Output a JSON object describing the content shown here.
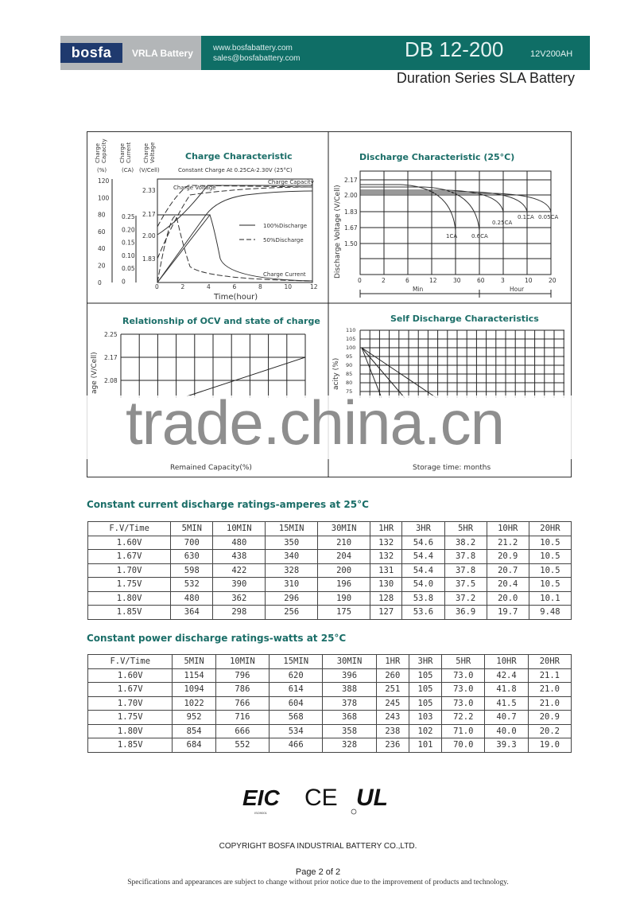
{
  "header": {
    "brand": "bosfa",
    "product_line": "VRLA Battery",
    "website": "www.bosfabattery.com",
    "email": "sales@bosfabattery.com",
    "model": "DB 12-200",
    "rating": "12V200AH",
    "subtitle": "Duration Series SLA Battery",
    "colors": {
      "teal": "#0f6e66",
      "gray": "#b3b6b8",
      "navy": "#1f3a6e"
    }
  },
  "charts": {
    "charge": {
      "title": "Charge Characteristic",
      "subtitle": "Constant Charge At 0.25CA-2.30V  (25°C)",
      "axis_heads": [
        "Charge Capacity",
        "Charge Current",
        "Charge Voltage"
      ],
      "units": [
        "(%)",
        "(CA)",
        "(V/Cell)"
      ],
      "capacity_ticks": [
        "120",
        "100",
        "80",
        "60",
        "40",
        "20",
        "0"
      ],
      "current_ticks": [
        "0.25",
        "0.20",
        "0.15",
        "0.10",
        "0.05",
        "0"
      ],
      "voltage_ticks": [
        "2.33",
        "2.17",
        "2.00",
        "1.83"
      ],
      "x_ticks": [
        "0",
        "2",
        "4",
        "6",
        "8",
        "10",
        "12"
      ],
      "xlabel": "Time(hour)",
      "labels": [
        "Charge Voltage",
        "Charge Capacity",
        "Charge Current"
      ],
      "legend": [
        "100%Discharge",
        "50%Discharge"
      ]
    },
    "discharge": {
      "title": "Discharge Characteristic  (25°C)",
      "ylabel": "Discharge Voltage (V/Cell)",
      "y_ticks": [
        "2.17",
        "2.00",
        "1.83",
        "1.67",
        "1.50"
      ],
      "x_ticks": [
        "0",
        "2",
        "6",
        "12",
        "30",
        "60",
        "3",
        "10",
        "20"
      ],
      "x_units": [
        "Min",
        "Hour"
      ],
      "series": [
        "1CA",
        "0.6CA",
        "0.25CA",
        "0.1CA",
        "0.05CA"
      ]
    },
    "ocv": {
      "title": "Relationship of OCV and state of charge",
      "ylabel": "age (V/Cell)",
      "y_ticks": [
        "2.25",
        "2.17",
        "2.08"
      ],
      "xlabel": "Remained Capacity(%)"
    },
    "self_discharge": {
      "title": "Self Discharge Characteristics",
      "ylabel": "acity (%)",
      "y_ticks": [
        "110",
        "105",
        "100",
        "95",
        "90",
        "85",
        "80",
        "75"
      ],
      "xlabel": "Storage time: months"
    }
  },
  "watermark": "trade.china.cn",
  "current_table": {
    "title": "Constant current discharge ratings-amperes at 25°C",
    "headers": [
      "F.V/Time",
      "5MIN",
      "10MIN",
      "15MIN",
      "30MIN",
      "1HR",
      "3HR",
      "5HR",
      "10HR",
      "20HR"
    ],
    "rows": [
      [
        "1.60V",
        "700",
        "480",
        "350",
        "210",
        "132",
        "54.6",
        "38.2",
        "21.2",
        "10.5"
      ],
      [
        "1.67V",
        "630",
        "438",
        "340",
        "204",
        "132",
        "54.4",
        "37.8",
        "20.9",
        "10.5"
      ],
      [
        "1.70V",
        "598",
        "422",
        "328",
        "200",
        "131",
        "54.4",
        "37.8",
        "20.7",
        "10.5"
      ],
      [
        "1.75V",
        "532",
        "390",
        "310",
        "196",
        "130",
        "54.0",
        "37.5",
        "20.4",
        "10.5"
      ],
      [
        "1.80V",
        "480",
        "362",
        "296",
        "190",
        "128",
        "53.8",
        "37.2",
        "20.0",
        "10.1"
      ],
      [
        "1.85V",
        "364",
        "298",
        "256",
        "175",
        "127",
        "53.6",
        "36.9",
        "19.7",
        "9.48"
      ]
    ]
  },
  "power_table": {
    "title": "Constant power discharge ratings-watts at 25°C",
    "headers": [
      "F.V/Time",
      "5MIN",
      "10MIN",
      "15MIN",
      "30MIN",
      "1HR",
      "3HR",
      "5HR",
      "10HR",
      "20HR"
    ],
    "rows": [
      [
        "1.60V",
        "1154",
        "796",
        "620",
        "396",
        "260",
        "105",
        "73.0",
        "42.4",
        "21.1"
      ],
      [
        "1.67V",
        "1094",
        "786",
        "614",
        "388",
        "251",
        "105",
        "73.0",
        "41.8",
        "21.0"
      ],
      [
        "1.70V",
        "1022",
        "766",
        "604",
        "378",
        "245",
        "105",
        "73.0",
        "41.5",
        "21.0"
      ],
      [
        "1.75V",
        "952",
        "716",
        "568",
        "368",
        "243",
        "103",
        "72.2",
        "40.7",
        "20.9"
      ],
      [
        "1.80V",
        "854",
        "666",
        "534",
        "358",
        "238",
        "102",
        "71.0",
        "40.0",
        "20.2"
      ],
      [
        "1.85V",
        "684",
        "552",
        "466",
        "328",
        "236",
        "101",
        "70.0",
        "39.3",
        "19.0"
      ]
    ]
  },
  "certifications": {
    "eic": "EIC",
    "eic_sub": "ISO9001",
    "ce": "CE",
    "ul": "UL"
  },
  "footer": {
    "copyright": "COPYRIGHT BOSFA INDUSTRIAL BATTERY CO.,LTD.",
    "page": "Page 2 of 2",
    "disclaimer": "Specifications and appearances are subject to change without prior notice due to the improvement of products and technology."
  }
}
